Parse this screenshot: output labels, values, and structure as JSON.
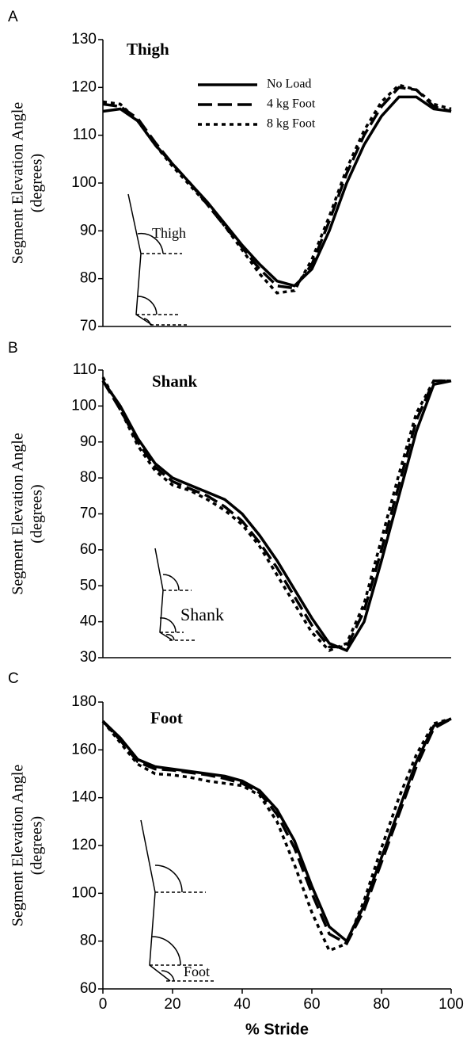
{
  "chart_data": [
    {
      "type": "line",
      "panel": "A",
      "title": "Thigh",
      "ylabel": [
        "Segment Elevation Angle",
        "(degrees)"
      ],
      "inset_label": "Thigh",
      "x": [
        0,
        5,
        10,
        15,
        20,
        25,
        30,
        35,
        40,
        45,
        50,
        55,
        60,
        65,
        70,
        75,
        80,
        85,
        90,
        95,
        100
      ],
      "xlim": [
        0,
        100
      ],
      "ylim": [
        70,
        130
      ],
      "yticks": [
        70,
        80,
        90,
        100,
        110,
        120,
        130
      ],
      "legend": "upper right",
      "series": [
        {
          "name": "No Load",
          "color": "#000000",
          "dash": "none",
          "values": [
            115,
            115.5,
            113,
            108,
            104,
            100,
            96,
            91.5,
            87,
            83,
            79.5,
            78.5,
            82,
            90,
            100,
            108,
            114,
            118,
            118,
            115.5,
            115
          ]
        },
        {
          "name": "4 kg Foot",
          "color": "#000000",
          "dash": "18,7",
          "values": [
            116.5,
            116,
            113.5,
            108.5,
            104,
            100,
            95.5,
            91,
            86.5,
            82,
            78.5,
            78,
            83,
            92,
            102,
            110,
            116,
            120,
            119.5,
            116,
            115
          ]
        },
        {
          "name": "8 kg Foot",
          "color": "#000000",
          "dash": "5,5",
          "values": [
            117,
            116.5,
            113,
            108,
            103.5,
            99.5,
            95.5,
            91,
            86,
            81,
            77,
            77.5,
            84,
            93,
            103,
            111,
            117,
            120.5,
            119.5,
            116.5,
            115.5
          ]
        }
      ]
    },
    {
      "type": "line",
      "panel": "B",
      "title": "Shank",
      "ylabel": [
        "Segment Elevation Angle",
        "(degrees)"
      ],
      "inset_label": "Shank",
      "x": [
        0,
        5,
        10,
        15,
        20,
        25,
        30,
        35,
        40,
        45,
        50,
        55,
        60,
        65,
        70,
        75,
        80,
        85,
        90,
        95,
        100
      ],
      "xlim": [
        0,
        100
      ],
      "ylim": [
        30,
        110
      ],
      "yticks": [
        30,
        40,
        50,
        60,
        70,
        80,
        90,
        100,
        110
      ],
      "series": [
        {
          "color": "#000000",
          "dash": "none",
          "values": [
            107,
            100,
            91,
            84,
            80,
            78,
            76,
            74,
            70,
            64,
            57,
            49,
            41,
            34,
            32,
            40,
            57,
            75,
            93,
            106,
            107
          ]
        },
        {
          "color": "#000000",
          "dash": "18,7",
          "values": [
            107,
            99,
            90,
            83,
            79,
            77,
            75,
            72,
            68,
            62,
            55,
            47,
            39,
            33,
            33,
            43,
            60,
            78,
            96,
            107,
            107
          ]
        },
        {
          "color": "#000000",
          "dash": "5,5",
          "values": [
            108,
            99,
            89,
            82,
            78,
            76.5,
            74,
            71,
            67,
            61,
            53,
            45,
            37,
            32,
            34,
            45,
            63,
            81,
            98,
            107,
            107
          ]
        }
      ]
    },
    {
      "type": "line",
      "panel": "C",
      "title": "Foot",
      "ylabel": [
        "Segment Elevation Angle",
        "(degrees)"
      ],
      "inset_label": "Foot",
      "xlabel": "% Stride",
      "x": [
        0,
        5,
        10,
        15,
        20,
        25,
        30,
        35,
        40,
        45,
        50,
        55,
        60,
        65,
        70,
        75,
        80,
        85,
        90,
        95,
        100
      ],
      "xlim": [
        0,
        100
      ],
      "xticks": [
        0,
        20,
        40,
        60,
        80,
        100
      ],
      "ylim": [
        60,
        180
      ],
      "yticks": [
        60,
        80,
        100,
        120,
        140,
        160,
        180
      ],
      "series": [
        {
          "color": "#000000",
          "dash": "none",
          "values": [
            172,
            165,
            156,
            153,
            152,
            151,
            150,
            149,
            147,
            143,
            135,
            122,
            103,
            86,
            80,
            95,
            115,
            135,
            155,
            170,
            173
          ]
        },
        {
          "color": "#000000",
          "dash": "18,7",
          "values": [
            172,
            164,
            155,
            152,
            151.5,
            150.5,
            149.5,
            148,
            146,
            142,
            133,
            119,
            100,
            83,
            79,
            93,
            113,
            133,
            153,
            169,
            173
          ]
        },
        {
          "color": "#000000",
          "dash": "5,5",
          "values": [
            172,
            163,
            154,
            150,
            149.5,
            148.5,
            147,
            146,
            145,
            141,
            130,
            112,
            92,
            76,
            79,
            97,
            119,
            140,
            158,
            171,
            173
          ]
        }
      ]
    }
  ]
}
